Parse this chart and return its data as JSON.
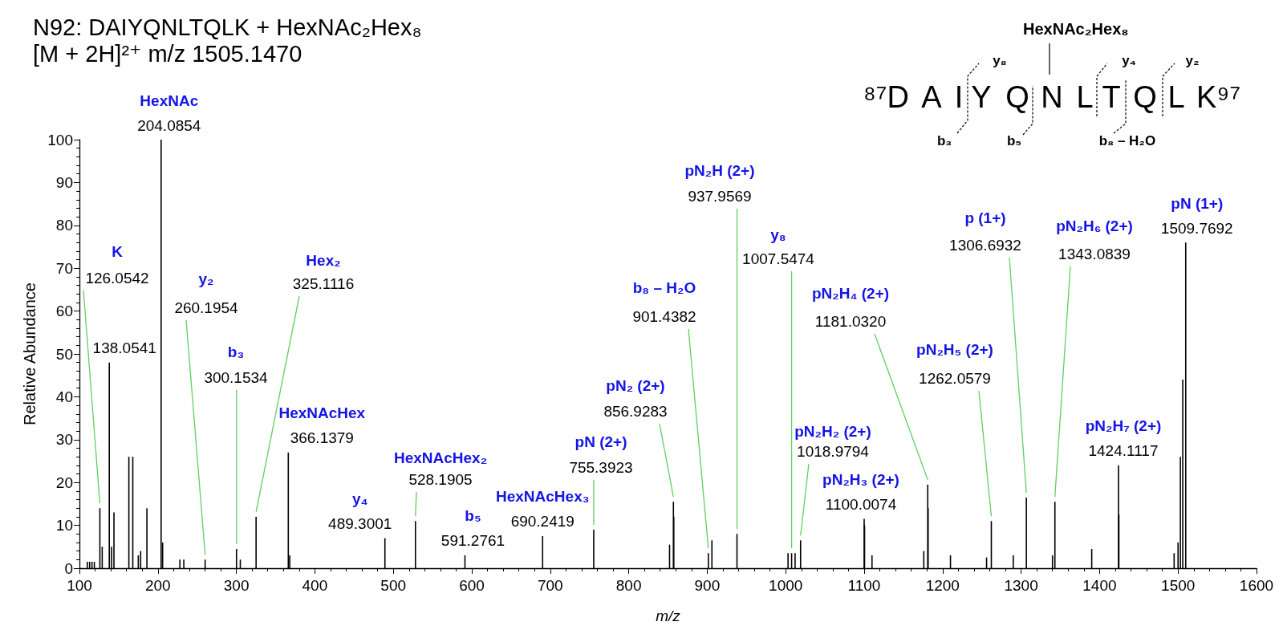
{
  "chart_data": {
    "type": "bar",
    "title": "N92: DAIYQNLTQLK + HexNAc₂Hex₈",
    "subtitle": "[M + 2H]²⁺ m/z 1505.1470",
    "xlabel": "m/z",
    "ylabel": "Relative Abundance",
    "x": [
      110,
      113,
      116,
      119,
      126.0542,
      129,
      138.0541,
      141,
      144,
      163,
      168,
      175,
      178,
      186,
      204.0854,
      206,
      228,
      233,
      260.1954,
      300.1534,
      305,
      325.1116,
      366.1379,
      368,
      489.3001,
      528.1905,
      591.2761,
      690.2419,
      755.3923,
      852,
      856.9283,
      857.4,
      901.4382,
      906,
      937.9569,
      1003,
      1007.5474,
      1012,
      1018.9794,
      1100.0074,
      1100.5,
      1110,
      1176,
      1181.032,
      1181.5,
      1210,
      1256,
      1262.0579,
      1290,
      1306.6932,
      1340,
      1343.0839,
      1390,
      1424.1117,
      1424.6,
      1495,
      1500,
      1503,
      1506,
      1509.7692
    ],
    "series": [
      {
        "color": "#000000",
        "values": [
          1.5,
          1.5,
          1.5,
          1.5,
          14,
          5,
          48,
          5,
          13,
          26,
          26,
          3,
          4,
          14,
          100,
          6,
          2,
          2,
          2,
          4.5,
          2,
          12,
          27,
          3,
          7,
          11,
          3,
          7.5,
          9,
          5.5,
          15.5,
          12,
          3.5,
          6.5,
          8,
          3.5,
          3.5,
          3.5,
          6.5,
          11.5,
          10,
          3,
          4,
          19.5,
          14,
          3,
          2.5,
          11,
          3,
          16.5,
          3,
          15.5,
          4.5,
          24,
          12.5,
          3.5,
          6,
          26,
          44,
          76
        ]
      }
    ],
    "xlim": [
      100,
      1600
    ],
    "xticks": [
      100,
      200,
      300,
      400,
      500,
      600,
      700,
      800,
      900,
      1000,
      1100,
      1200,
      1300,
      1400,
      1500,
      1600
    ],
    "ylim": [
      0,
      100
    ],
    "yticks": [
      0,
      10,
      20,
      30,
      40,
      50,
      60,
      70,
      80,
      90,
      100
    ],
    "grid": false,
    "annotations": [
      {
        "text": "K\n126.0542",
        "x": 126.0542,
        "y": 14
      },
      {
        "text": "138.0541",
        "x": 138.0541,
        "y": 48
      },
      {
        "text": "HexNAc\n204.0854",
        "x": 204.0854,
        "y": 100
      },
      {
        "text": "y₂\n260.1954",
        "x": 260.1954,
        "y": 2
      },
      {
        "text": "b₃\n300.1534",
        "x": 300.1534,
        "y": 4.5
      },
      {
        "text": "Hex₂\n325.1116",
        "x": 325.1116,
        "y": 12
      },
      {
        "text": "HexNAcHex\n366.1379",
        "x": 366.1379,
        "y": 27
      },
      {
        "text": "y₄\n489.3001",
        "x": 489.3001,
        "y": 7
      },
      {
        "text": "HexNAcHex₂\n528.1905",
        "x": 528.1905,
        "y": 11
      },
      {
        "text": "b₅\n591.2761",
        "x": 591.2761,
        "y": 3
      },
      {
        "text": "HexNAcHex₃\n690.2419",
        "x": 690.2419,
        "y": 7.5
      },
      {
        "text": "pN (2+)\n755.3923",
        "x": 755.3923,
        "y": 9
      },
      {
        "text": "pN₂ (2+)\n856.9283",
        "x": 856.9283,
        "y": 15.5
      },
      {
        "text": "b₈ – H₂O\n901.4382",
        "x": 901.4382,
        "y": 3.5
      },
      {
        "text": "pN₂H (2+)\n937.9569",
        "x": 937.9569,
        "y": 8
      },
      {
        "text": "y₈\n1007.5474",
        "x": 1007.5474,
        "y": 3.5
      },
      {
        "text": "pN₂H₂ (2+)\n1018.9794",
        "x": 1018.9794,
        "y": 6.5
      },
      {
        "text": "pN₂H₃ (2+)\n1100.0074",
        "x": 1100.0074,
        "y": 11.5
      },
      {
        "text": "pN₂H₄ (2+)\n1181.0320",
        "x": 1181.032,
        "y": 19.5
      },
      {
        "text": "pN₂H₅ (2+)\n1262.0579",
        "x": 1262.0579,
        "y": 11
      },
      {
        "text": "p (1+)\n1306.6932",
        "x": 1306.6932,
        "y": 16.5
      },
      {
        "text": "pN₂H₆ (2+)\n1343.0839",
        "x": 1343.0839,
        "y": 15.5
      },
      {
        "text": "pN₂H₇ (2+)\n1424.1117",
        "x": 1424.1117,
        "y": 24
      },
      {
        "text": "pN (1+)\n1509.7692",
        "x": 1509.7692,
        "y": 76
      },
      "HexNAc₂Hex₈",
      "⁸⁷D A I Y Q N L T Q L K⁹⁷",
      "y₈",
      "y₄",
      "y₂",
      "b₃",
      "b₅",
      "b₈ – H₂O"
    ]
  }
}
